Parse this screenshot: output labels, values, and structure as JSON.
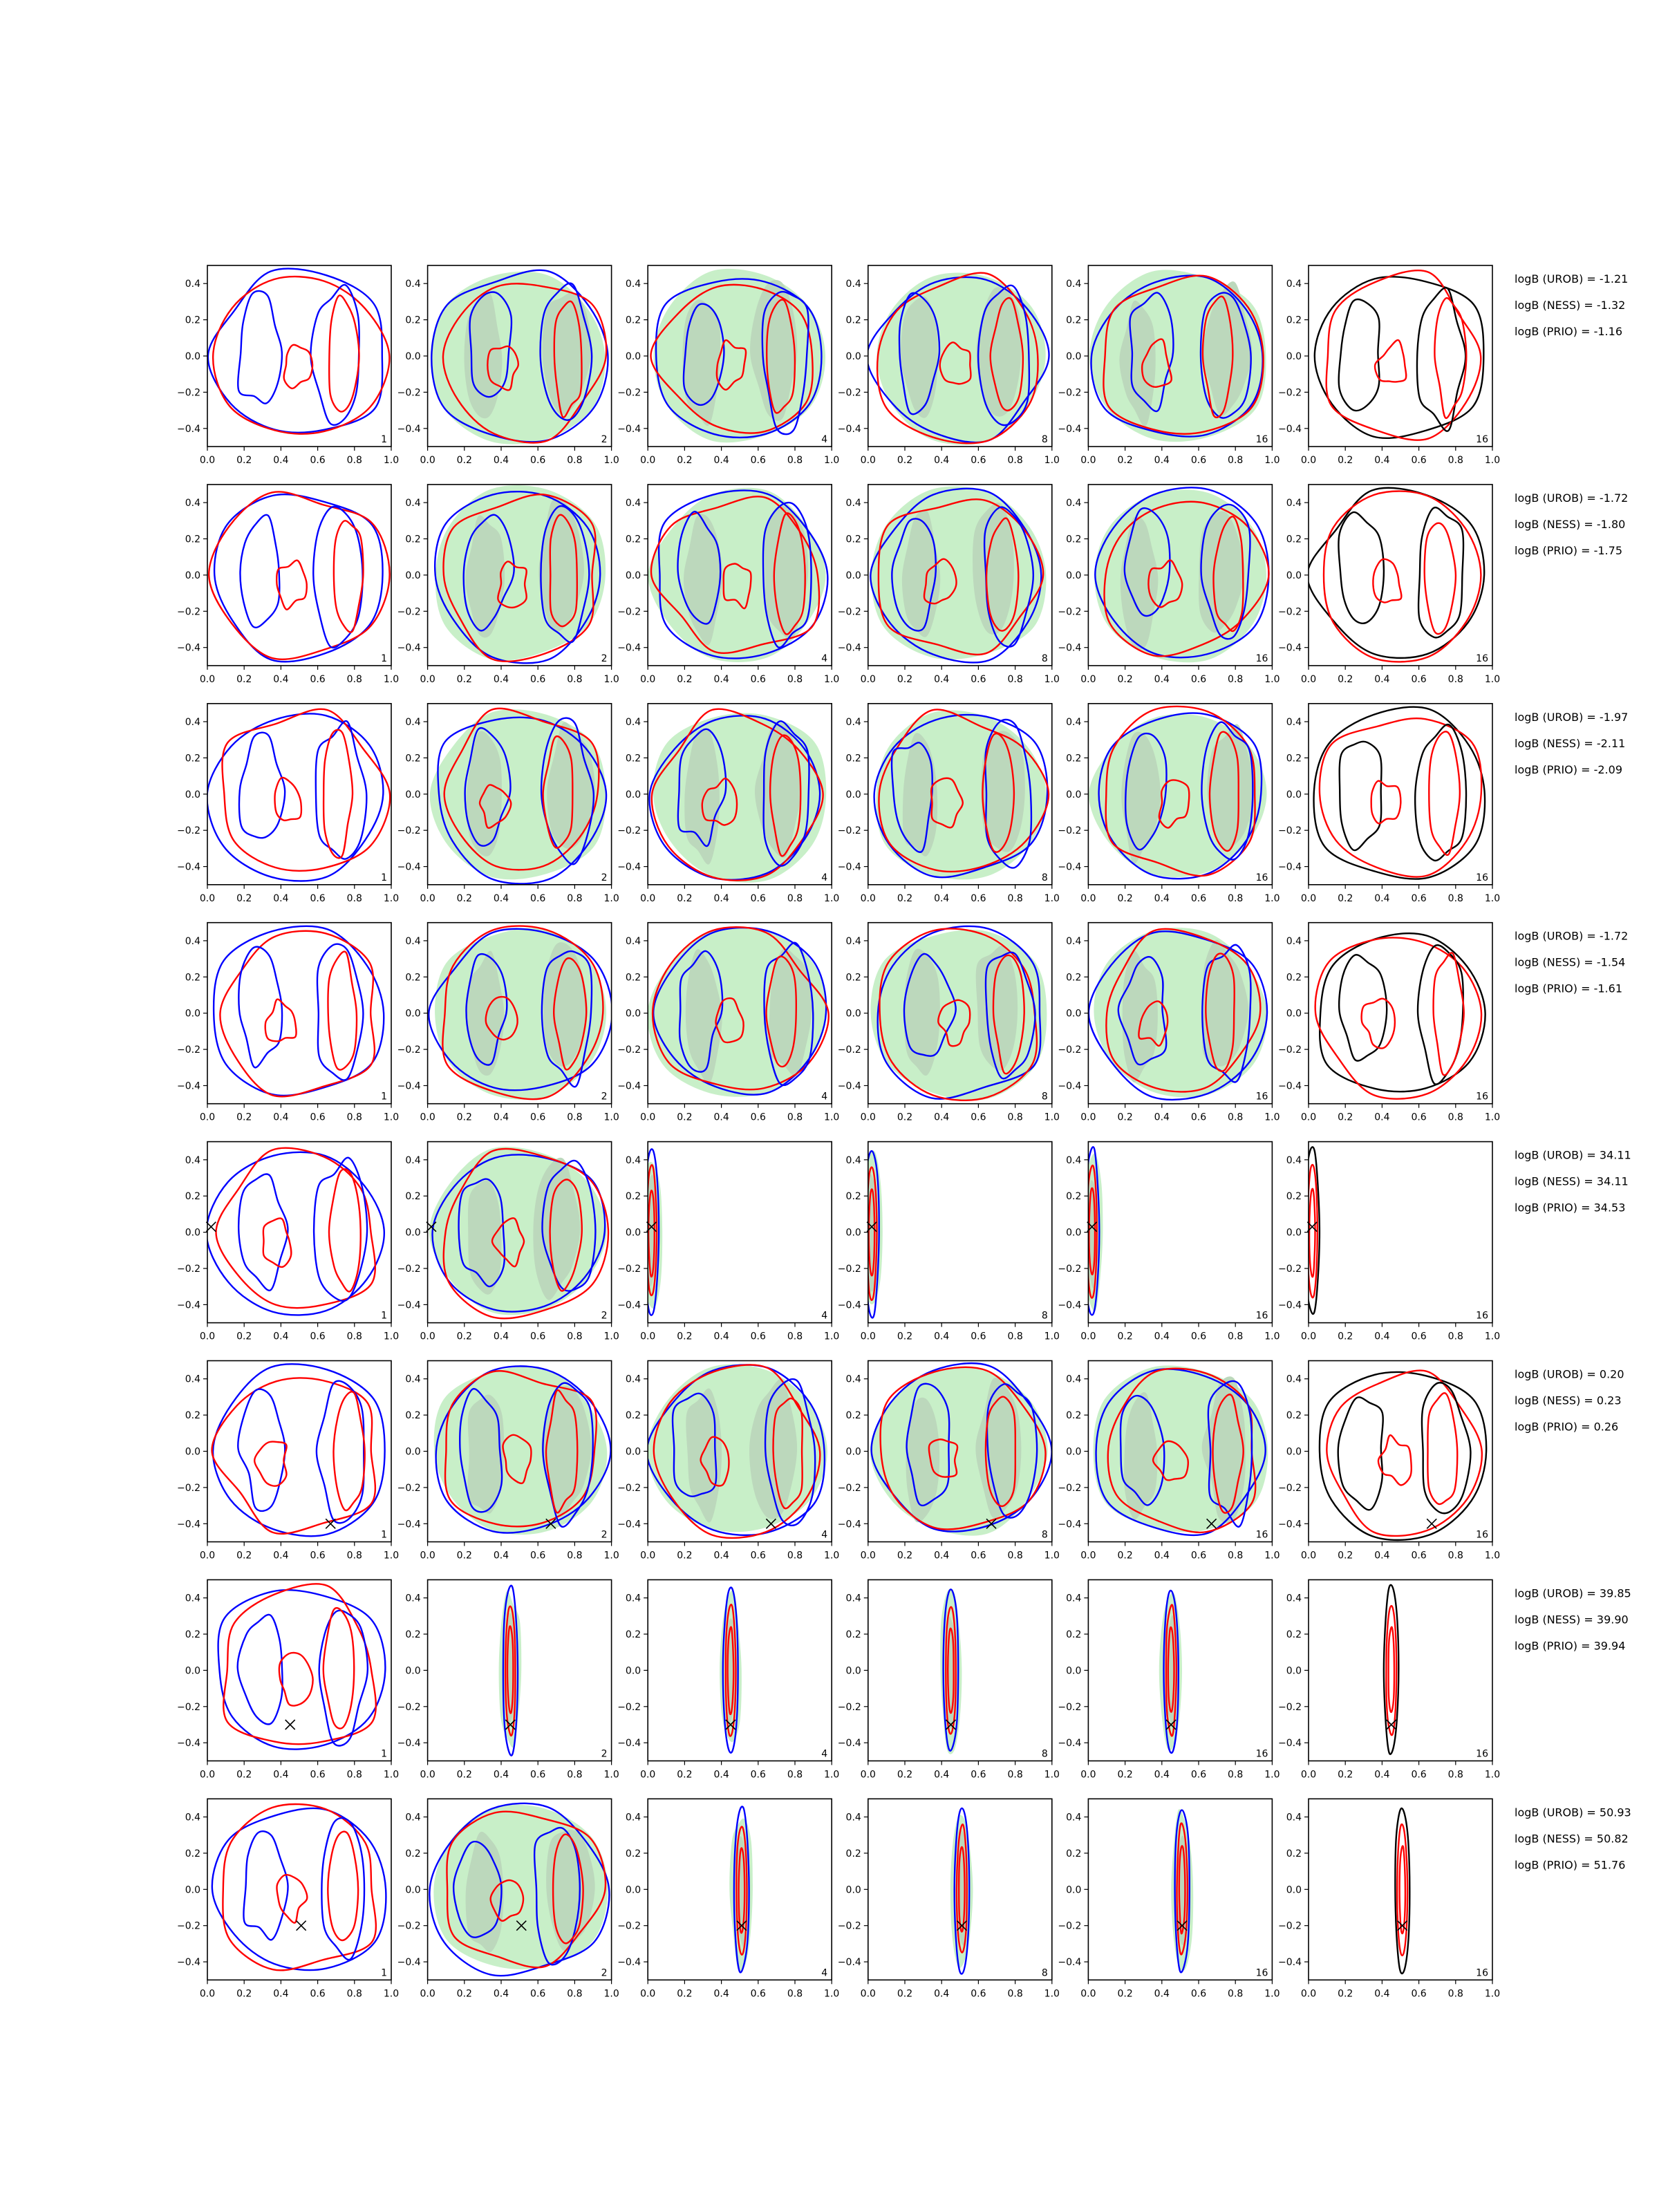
{
  "figure": {
    "colors": {
      "uniform_prior": "#0000ff",
      "sampled": "#ff0000",
      "final": "#000000",
      "density_light": "#c8efc8",
      "density_dark": "#bcd8bc",
      "true_marker": "#000000"
    }
  },
  "chart_data": {
    "type": "contour-grid",
    "title": "",
    "xlabel": "",
    "ylabel": "",
    "xlim": [
      0.0,
      1.0
    ],
    "ylim": [
      -0.5,
      0.5
    ],
    "x_ticks": [
      "0.0",
      "0.2",
      "0.4",
      "0.6",
      "0.8",
      "1.0"
    ],
    "y_ticks": [
      "0.4",
      "0.2",
      "0.0",
      "−0.2",
      "−0.4"
    ],
    "grid": false,
    "columns": [
      "1",
      "2",
      "4",
      "8",
      "16",
      "16"
    ],
    "rows": [
      {
        "marker": null,
        "focus": null,
        "annotations": [
          "logB (UROB) = -1.21",
          "logB (NESS) = -1.32",
          "logB (PRIO) = -1.16"
        ]
      },
      {
        "marker": null,
        "focus": null,
        "annotations": [
          "logB (UROB) = -1.72",
          "logB (NESS) = -1.80",
          "logB (PRIO) = -1.75"
        ]
      },
      {
        "marker": null,
        "focus": null,
        "annotations": [
          "logB (UROB) = -1.97",
          "logB (NESS) = -2.11",
          "logB (PRIO) = -2.09"
        ]
      },
      {
        "marker": null,
        "focus": null,
        "annotations": [
          "logB (UROB) = -1.72",
          "logB (NESS) = -1.54",
          "logB (PRIO) = -1.61"
        ]
      },
      {
        "marker": [
          0.02,
          0.03
        ],
        "focus": 2,
        "annotations": [
          "logB (UROB) = 34.11",
          "logB (NESS) = 34.11",
          "logB (PRIO) = 34.53"
        ]
      },
      {
        "marker": [
          0.67,
          -0.4
        ],
        "focus": null,
        "annotations": [
          "logB (UROB) = 0.20",
          "logB (NESS) = 0.23",
          "logB (PRIO) = 0.26"
        ]
      },
      {
        "marker": [
          0.45,
          -0.3
        ],
        "focus": 1,
        "annotations": [
          "logB (UROB) = 39.85",
          "logB (NESS) = 39.90",
          "logB (PRIO) = 39.94"
        ]
      },
      {
        "marker": [
          0.51,
          -0.2
        ],
        "focus": 2,
        "annotations": [
          "logB (UROB) = 50.93",
          "logB (NESS) = 50.82",
          "logB (PRIO) = 51.76"
        ]
      }
    ]
  }
}
